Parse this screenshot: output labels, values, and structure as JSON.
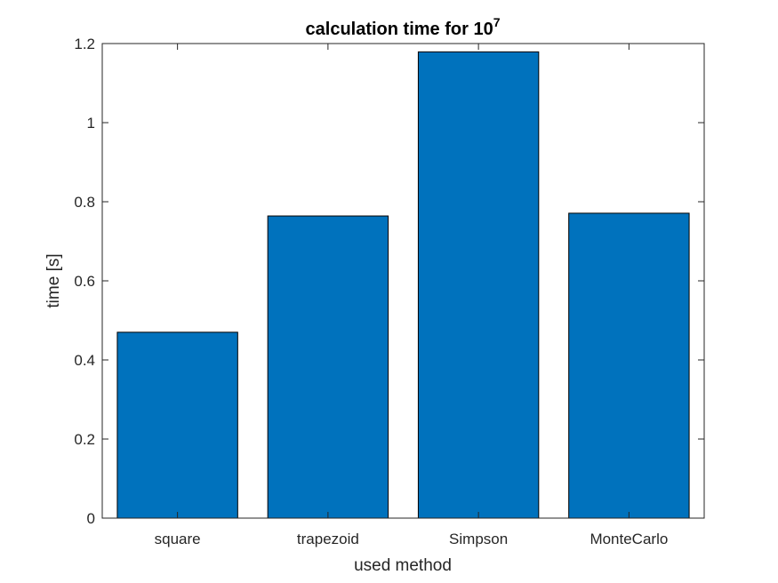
{
  "chart_data": {
    "type": "bar",
    "title": "calculation time for 10",
    "title_superscript": "7",
    "xlabel": "used method",
    "ylabel": "time [s]",
    "categories": [
      "square",
      "trapezoid",
      "Simpson",
      "MonteCarlo"
    ],
    "values": [
      0.47,
      0.764,
      1.179,
      0.771
    ],
    "ylim": [
      0,
      1.2
    ],
    "yticks": [
      0,
      0.2,
      0.4,
      0.6,
      0.8,
      1,
      1.2
    ],
    "ytick_labels": [
      "0",
      "0.2",
      "0.4",
      "0.6",
      "0.8",
      "1",
      "1.2"
    ],
    "grid": false,
    "bar_color": "#0072BD",
    "box": true
  }
}
